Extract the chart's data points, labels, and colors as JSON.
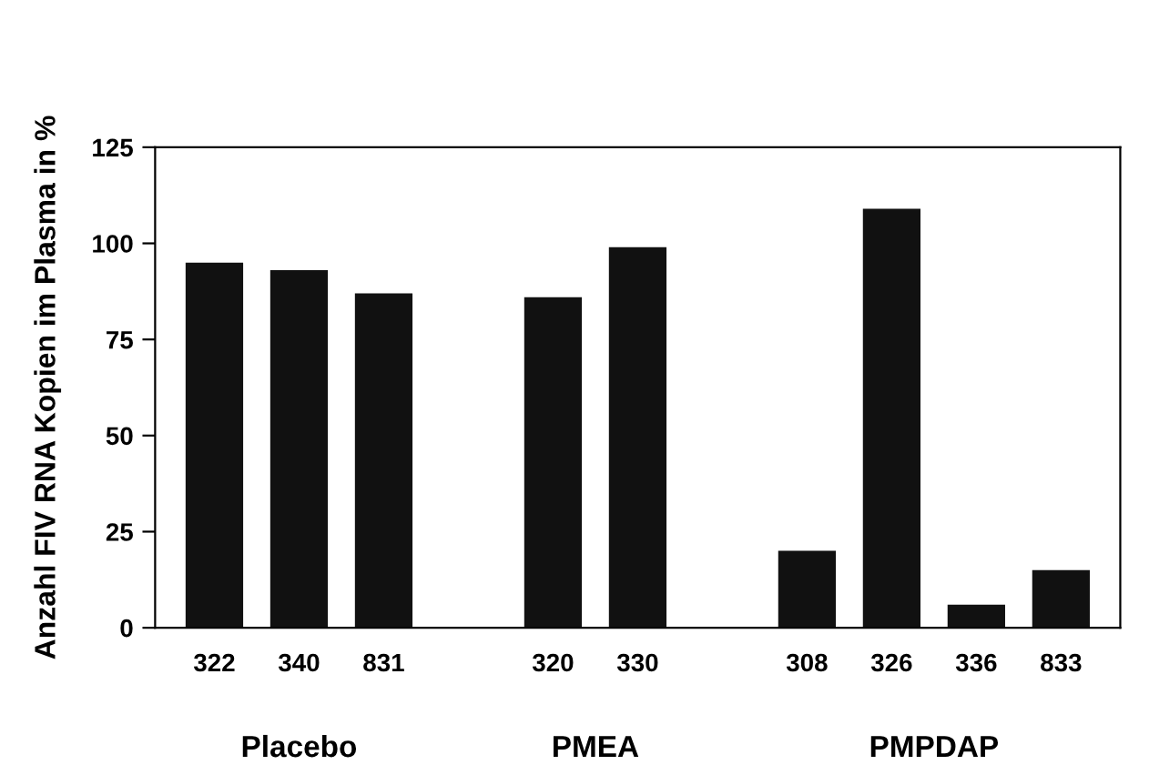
{
  "chart_data": {
    "type": "bar",
    "ylabel": "Anzahl FIV RNA Kopien im Plasma in %",
    "categories": [
      "322",
      "340",
      "831",
      null,
      "320",
      "330",
      null,
      "308",
      "326",
      "336",
      "833"
    ],
    "values": [
      95,
      93,
      87,
      null,
      86,
      99,
      null,
      20,
      109,
      6,
      15
    ],
    "color": "#111111",
    "ylim": [
      0,
      125
    ],
    "yticks": [
      0,
      25,
      50,
      75,
      100,
      125
    ],
    "annotations": [
      "Placebo",
      "PMEA",
      "PMPDAP"
    ],
    "grid": false
  }
}
